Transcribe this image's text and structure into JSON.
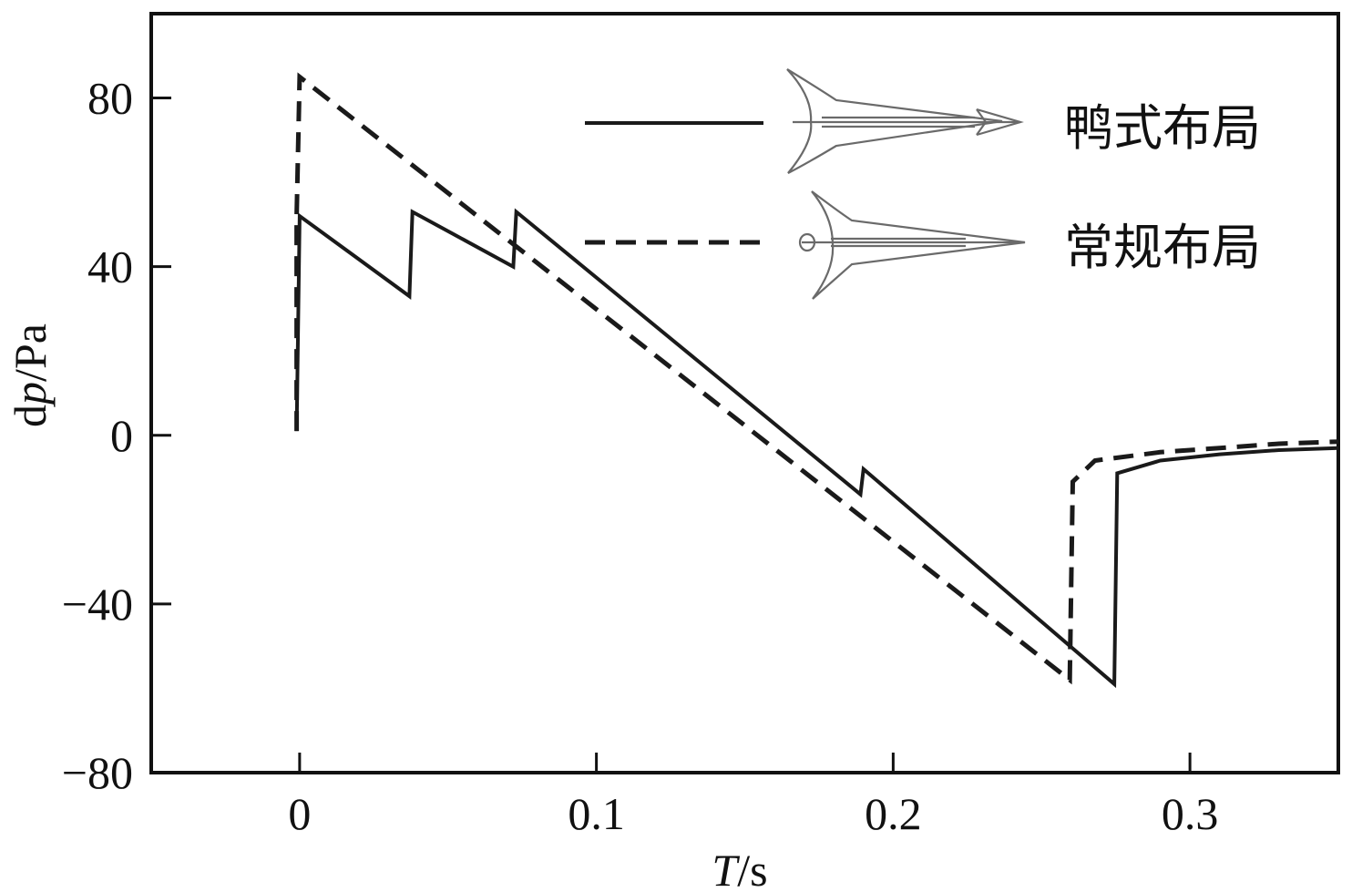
{
  "chart_data": {
    "type": "line",
    "xlabel": {
      "italic": "T",
      "rest": "/s"
    },
    "ylabel": {
      "prefix": "d",
      "italic": "p",
      "rest": "/Pa"
    },
    "xlim": [
      -0.05,
      0.35
    ],
    "ylim": [
      -80,
      100
    ],
    "xticks": [
      0,
      0.1,
      0.2,
      0.3
    ],
    "xtick_labels": [
      "0",
      "0.1",
      "0.2",
      "0.3"
    ],
    "yticks": [
      80,
      40,
      0,
      -40,
      -80
    ],
    "ytick_labels": [
      "80",
      "40",
      "0",
      "−40",
      "−80"
    ],
    "grid": false,
    "legend_position": "top-right",
    "series": [
      {
        "name": "鸭式布局",
        "style": "solid",
        "color": "#1a1a1a",
        "icon": "canard-aircraft-planform-icon",
        "x": [
          -0.001,
          0.0,
          0.037,
          0.038,
          0.072,
          0.073,
          0.189,
          0.19,
          0.2745,
          0.2755,
          0.29,
          0.31,
          0.33,
          0.35
        ],
        "y": [
          1,
          52,
          33,
          53,
          40,
          53,
          -14,
          -8,
          -59,
          -9,
          -6,
          -4.5,
          -3.5,
          -3
        ]
      },
      {
        "name": "常规布局",
        "style": "dashed",
        "color": "#1a1a1a",
        "icon": "conventional-aircraft-planform-icon",
        "x": [
          -0.001,
          -0.001,
          0.0,
          0.2595,
          0.2605,
          0.268,
          0.29,
          0.31,
          0.33,
          0.35
        ],
        "y": [
          1,
          52,
          85,
          -58,
          -11,
          -6,
          -4,
          -3,
          -2,
          -1.5
        ]
      }
    ]
  }
}
